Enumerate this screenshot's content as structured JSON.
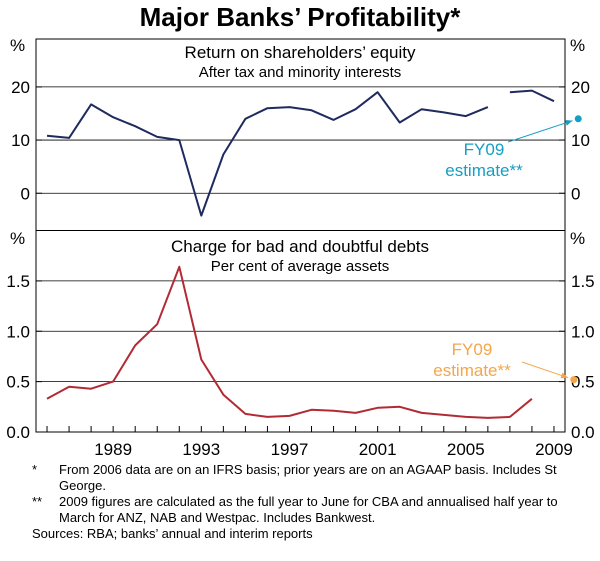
{
  "chart_data": {
    "type": "line",
    "title": "Major Banks’ Profitability*",
    "unit_label": "%",
    "x_tick_labels": [
      "1989",
      "1993",
      "1997",
      "2001",
      "2005",
      "2009"
    ],
    "xlim": [
      1985.5,
      2009.5
    ],
    "colors": {
      "roe": "#1f2a5e",
      "baddebt": "#b22a33",
      "estimate_blue": "#169ec3",
      "estimate_orange": "#f5a64a",
      "axis": "#000000",
      "gridline": "#000000"
    },
    "panels": [
      {
        "name": "return-on-equity",
        "title": "Return on shareholders’ equity",
        "subtitle": "After tax and minority interests",
        "ylim": [
          -7,
          29
        ],
        "y_ticks": [
          0,
          10,
          20
        ],
        "y_tick_labels": [
          "0",
          "10",
          "20"
        ],
        "series": [
          {
            "name": "Return on shareholders’ equity",
            "segments": [
              [
                [
                  1986,
                  10.8
                ],
                [
                  1987,
                  10.4
                ],
                [
                  1988,
                  16.7
                ],
                [
                  1989,
                  14.3
                ],
                [
                  1990,
                  12.6
                ],
                [
                  1991,
                  10.6
                ],
                [
                  1992,
                  10.0
                ],
                [
                  1993,
                  -4.2
                ],
                [
                  1994,
                  7.3
                ],
                [
                  1995,
                  14.0
                ],
                [
                  1996,
                  16.0
                ],
                [
                  1997,
                  16.2
                ],
                [
                  1998,
                  15.6
                ],
                [
                  1999,
                  13.8
                ],
                [
                  2000,
                  15.8
                ],
                [
                  2001,
                  19.0
                ],
                [
                  2002,
                  13.3
                ],
                [
                  2003,
                  15.8
                ],
                [
                  2004,
                  15.2
                ],
                [
                  2005,
                  14.5
                ],
                [
                  2006,
                  16.2
                ]
              ],
              [
                [
                  2007,
                  19.0
                ],
                [
                  2008,
                  19.3
                ],
                [
                  2009,
                  17.3
                ]
              ]
            ]
          }
        ],
        "estimate": {
          "x": 2010.1,
          "y": 14.0,
          "label_line1": "FY09",
          "label_line2": "estimate**"
        }
      },
      {
        "name": "bad-debt-charge",
        "title": "Charge for bad and doubtful debts",
        "subtitle": "Per cent of average assets",
        "ylim": [
          0,
          2.0
        ],
        "y_ticks": [
          0,
          0.5,
          1.0,
          1.5
        ],
        "y_tick_labels": [
          "0.0",
          "0.5",
          "1.0",
          "1.5"
        ],
        "series": [
          {
            "name": "Charge for bad and doubtful debts",
            "segments": [
              [
                [
                  1986,
                  0.33
                ],
                [
                  1987,
                  0.45
                ],
                [
                  1988,
                  0.43
                ],
                [
                  1989,
                  0.5
                ],
                [
                  1990,
                  0.86
                ],
                [
                  1991,
                  1.07
                ],
                [
                  1992,
                  1.64
                ],
                [
                  1993,
                  0.72
                ],
                [
                  1994,
                  0.37
                ],
                [
                  1995,
                  0.18
                ],
                [
                  1996,
                  0.15
                ],
                [
                  1997,
                  0.16
                ],
                [
                  1998,
                  0.22
                ],
                [
                  1999,
                  0.21
                ],
                [
                  2000,
                  0.19
                ],
                [
                  2001,
                  0.24
                ],
                [
                  2002,
                  0.25
                ],
                [
                  2003,
                  0.19
                ],
                [
                  2004,
                  0.17
                ],
                [
                  2005,
                  0.15
                ],
                [
                  2006,
                  0.14
                ],
                [
                  2007,
                  0.15
                ],
                [
                  2008,
                  0.33
                ]
              ]
            ]
          }
        ],
        "estimate": {
          "x": 2009.9,
          "y": 0.52,
          "label_line1": "FY09",
          "label_line2": "estimate**"
        }
      }
    ]
  },
  "footnotes": [
    {
      "mark": "*",
      "text": "From 2006 data are on an IFRS basis; prior years are on an AGAAP basis. Includes St George."
    },
    {
      "mark": "**",
      "text": "2009 figures are calculated as the full year to June for CBA and annualised half year to March for ANZ, NAB and Westpac. Includes Bankwest."
    }
  ],
  "sources": "Sources: RBA; banks’ annual and interim reports"
}
